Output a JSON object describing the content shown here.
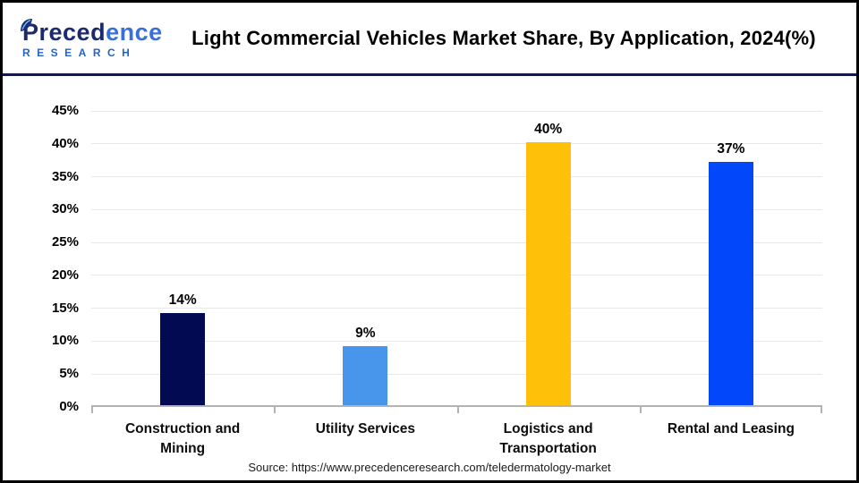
{
  "header": {
    "logo": {
      "name_part1": "Preced",
      "name_part2": "ence",
      "subtitle": "RESEARCH",
      "navy": "#1b2a6e",
      "blue": "#2563c9"
    },
    "title": "Light Commercial Vehicles Market Share, By Application, 2024(%)"
  },
  "chart_data": {
    "type": "bar",
    "title": "Light Commercial Vehicles Market Share, By Application, 2024(%)",
    "categories": [
      "Construction and Mining",
      "Utility Services",
      "Logistics and Transportation",
      "Rental and Leasing"
    ],
    "values": [
      14,
      9,
      40,
      37
    ],
    "value_labels": [
      "14%",
      "9%",
      "40%",
      "37%"
    ],
    "bar_colors": [
      "#020b52",
      "#4796ec",
      "#ffc00a",
      "#0347fb"
    ],
    "xlabel": "",
    "ylabel": "",
    "ylim": [
      0,
      45
    ],
    "ytick_step": 5,
    "ytick_labels": [
      "0%",
      "5%",
      "10%",
      "15%",
      "20%",
      "25%",
      "30%",
      "35%",
      "40%",
      "45%"
    ],
    "grid": true,
    "gridline_color": "#e8e8e8",
    "axis_color": "#b3b3b3",
    "legend": "none"
  },
  "footer": {
    "source": "Source: https://www.precedenceresearch.com/teledermatology-market"
  }
}
